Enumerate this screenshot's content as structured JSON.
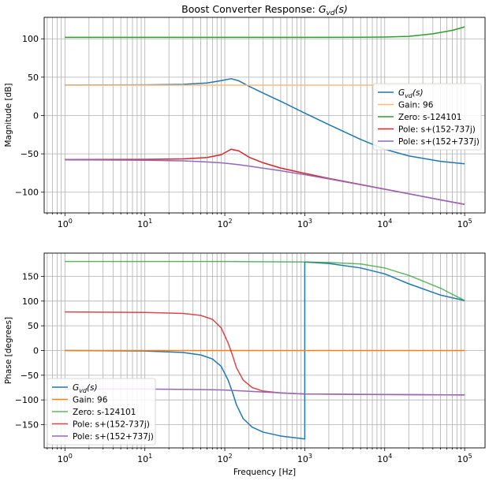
{
  "chart_data": [
    {
      "type": "line",
      "title_main": "Boost Converter Response: ",
      "title_func": "G",
      "title_sub": "vd",
      "title_tail": "(s)",
      "xlabel": "",
      "ylabel": "Magnitude [dB]",
      "xscale": "log",
      "xlim": [
        0.55,
        180000
      ],
      "ylim": [
        -127,
        128
      ],
      "xticks": [
        {
          "base": "10",
          "exp": "0",
          "value": 1
        },
        {
          "base": "10",
          "exp": "1",
          "value": 10
        },
        {
          "base": "10",
          "exp": "2",
          "value": 100
        },
        {
          "base": "10",
          "exp": "3",
          "value": 1000
        },
        {
          "base": "10",
          "exp": "4",
          "value": 10000
        },
        {
          "base": "10",
          "exp": "5",
          "value": 100000
        }
      ],
      "yticks": [
        "100",
        "50",
        "0",
        "−50",
        "−100"
      ],
      "ytick_values": [
        100,
        50,
        0,
        -50,
        -100
      ],
      "grid": "major and minor",
      "legend_position": "center-right",
      "series": [
        {
          "name": "Gvd(s)",
          "name_main": "G",
          "name_sub": "vd",
          "name_tail": "(s)",
          "color": "#1f77b4",
          "opacity": 1,
          "x": [
            1,
            10,
            30,
            60,
            90,
            120,
            150,
            200,
            300,
            500,
            1000,
            2000,
            5000,
            10000,
            20000,
            50000,
            100000
          ],
          "y": [
            39.7,
            39.9,
            40.6,
            42.4,
            45.5,
            48.0,
            45.2,
            38.2,
            29.4,
            18.5,
            3.1,
            -11.9,
            -31.2,
            -44.0,
            -52.7,
            -59.8,
            -63.0
          ]
        },
        {
          "name": "Gain: 96",
          "color": "#ffbb78",
          "opacity": 1,
          "x": [
            1,
            100000
          ],
          "y": [
            39.6,
            39.6
          ]
        },
        {
          "name": "Zero: s-124101",
          "color": "#2ca02c",
          "opacity": 1,
          "x": [
            1,
            1000,
            5000,
            10000,
            20000,
            40000,
            70000,
            100000
          ],
          "y": [
            101.9,
            101.9,
            102.0,
            102.3,
            103.2,
            106.5,
            111.0,
            115.5
          ]
        },
        {
          "name": "Pole: s+(152-737j)",
          "color": "#d62728",
          "opacity": 1,
          "x": [
            1,
            10,
            30,
            60,
            90,
            120,
            150,
            200,
            300,
            500,
            1000,
            2000,
            5000,
            10000,
            20000,
            50000,
            100000
          ],
          "y": [
            -57.5,
            -57.2,
            -56.6,
            -54.8,
            -51.2,
            -44.0,
            -46.2,
            -54.3,
            -61.6,
            -68.5,
            -75.5,
            -82.0,
            -90.0,
            -96.0,
            -102.0,
            -110.0,
            -115.8
          ]
        },
        {
          "name": "Pole: s+(152+737j)",
          "color": "#9467bd",
          "opacity": 1,
          "x": [
            1,
            10,
            30,
            60,
            90,
            120,
            150,
            200,
            300,
            500,
            1000,
            2000,
            5000,
            10000,
            20000,
            50000,
            100000
          ],
          "y": [
            -57.8,
            -58.3,
            -59.2,
            -60.5,
            -61.7,
            -63.0,
            -64.2,
            -66.0,
            -68.6,
            -72.0,
            -77.2,
            -82.7,
            -90.3,
            -96.1,
            -102.1,
            -110.0,
            -116.0
          ]
        }
      ]
    },
    {
      "type": "line",
      "xlabel": "Frequency [Hz]",
      "ylabel": "Phase [degrees]",
      "xscale": "log",
      "xlim": [
        0.55,
        180000
      ],
      "ylim": [
        -197,
        197
      ],
      "xticks": [
        {
          "base": "10",
          "exp": "0",
          "value": 1
        },
        {
          "base": "10",
          "exp": "1",
          "value": 10
        },
        {
          "base": "10",
          "exp": "2",
          "value": 100
        },
        {
          "base": "10",
          "exp": "3",
          "value": 1000
        },
        {
          "base": "10",
          "exp": "4",
          "value": 10000
        },
        {
          "base": "10",
          "exp": "5",
          "value": 100000
        }
      ],
      "yticks": [
        "150",
        "100",
        "50",
        "0",
        "−50",
        "−100",
        "−150"
      ],
      "ytick_values": [
        150,
        100,
        50,
        0,
        -50,
        -100,
        -150
      ],
      "grid": "major and minor",
      "legend_position": "lower-left",
      "series": [
        {
          "name": "Gvd(s)",
          "name_main": "G",
          "name_sub": "vd",
          "name_tail": "(s)",
          "color": "#1f77b4",
          "opacity": 1,
          "x": [
            1,
            10,
            30,
            50,
            70,
            90,
            110,
            125,
            140,
            170,
            220,
            300,
            500,
            1000,
            1000,
            2000,
            5000,
            10000,
            20000,
            50000,
            100000
          ],
          "y": [
            0,
            -1,
            -4,
            -9,
            -17,
            -32,
            -60,
            -85,
            -110,
            -138,
            -155,
            -165,
            -173,
            -179,
            179,
            176,
            167,
            155,
            135,
            112,
            101
          ]
        },
        {
          "name": "Gain: 96",
          "color": "#ff7f0e",
          "opacity": 1,
          "x": [
            1,
            100000
          ],
          "y": [
            0,
            0
          ]
        },
        {
          "name": "Zero: s-124101",
          "color": "#2ca02c",
          "opacity": 0.75,
          "x": [
            1,
            100,
            1000,
            2000,
            5000,
            10000,
            20000,
            50000,
            100000
          ],
          "y": [
            180,
            180,
            179,
            178,
            175,
            167,
            152,
            126,
            101
          ]
        },
        {
          "name": "Pole: s+(152-737j)",
          "color": "#d62728",
          "opacity": 0.85,
          "x": [
            1,
            10,
            30,
            50,
            70,
            90,
            110,
            125,
            140,
            170,
            220,
            300,
            500,
            1000,
            5000,
            100000
          ],
          "y": [
            78,
            77,
            75,
            71,
            63,
            46,
            15,
            -10,
            -35,
            -60,
            -75,
            -82,
            -86,
            -88,
            -89,
            -90
          ]
        },
        {
          "name": "Pole: s+(152+737j)",
          "color": "#9467bd",
          "opacity": 1,
          "x": [
            1,
            10,
            50,
            100,
            300,
            1000,
            10000,
            100000
          ],
          "y": [
            -78,
            -78,
            -79,
            -80,
            -84,
            -88,
            -89,
            -90
          ]
        }
      ]
    }
  ]
}
